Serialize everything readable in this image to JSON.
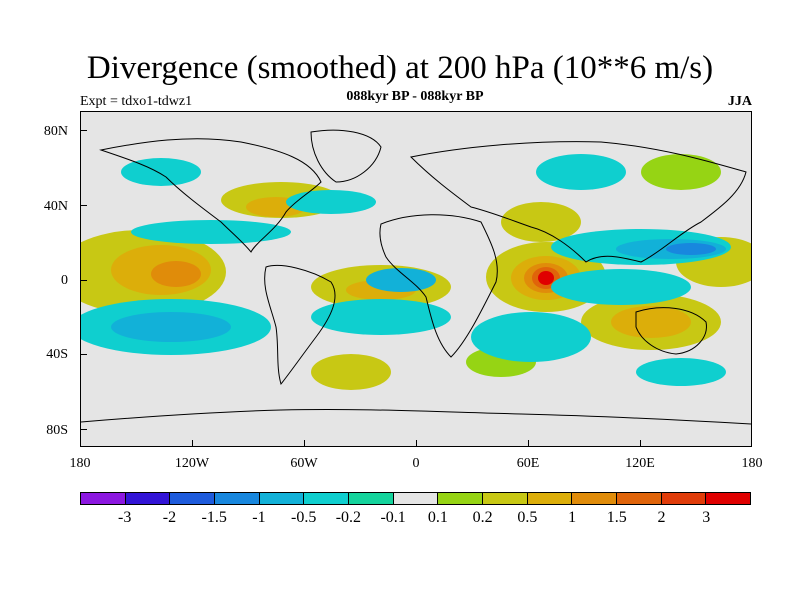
{
  "header": {
    "title": "Divergence (smoothed) at 200 hPa (10**6 m/s)",
    "experiment": "Expt = tdxo1-tdwz1",
    "period": "088kyr BP - 088kyr BP",
    "season": "JJA"
  },
  "map": {
    "type": "filled-contour-map",
    "projection": "cylindrical-equidistant",
    "lon_range": [
      -180,
      180
    ],
    "lat_range": [
      -90,
      90
    ],
    "y_ticks": [
      "80N",
      "40N",
      "0",
      "40S",
      "80S"
    ],
    "x_ticks": [
      "180",
      "120W",
      "60W",
      "0",
      "60E",
      "120E",
      "180"
    ],
    "background_color": "#e5e5e5",
    "coastline_color": "#000000"
  },
  "colorbar": {
    "labels": [
      "-3",
      "-2",
      "-1.5",
      "-1",
      "-0.5",
      "-0.2",
      "-0.1",
      "0.1",
      "0.2",
      "0.5",
      "1",
      "1.5",
      "2",
      "3"
    ],
    "colors": [
      "#8c17e0",
      "#3214d6",
      "#1e5bdc",
      "#1887de",
      "#12b1d8",
      "#0fcfcf",
      "#14d39c",
      "#e5e5e5",
      "#96d414",
      "#c8c814",
      "#dcae0a",
      "#e08c0a",
      "#e0640a",
      "#e03c0a",
      "#e00000"
    ]
  }
}
